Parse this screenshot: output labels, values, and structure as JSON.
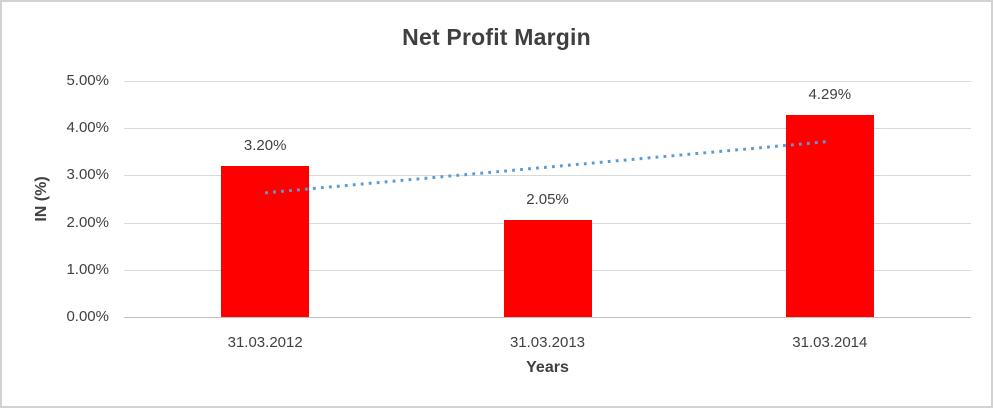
{
  "frame": {
    "background": "#ffffff",
    "border_color": "#d2d2d2"
  },
  "chart_data": {
    "type": "bar",
    "title": "Net Profit Margin",
    "categories": [
      "31.03.2012",
      "31.03.2013",
      "31.03.2014"
    ],
    "series": [
      {
        "name": "Net Profit Margin",
        "values": [
          3.2,
          2.05,
          4.29
        ]
      }
    ],
    "data_labels": [
      "3.20%",
      "2.05%",
      "4.29%"
    ],
    "xlabel": "Years",
    "ylabel": "IN (%)",
    "ylim": [
      0,
      5
    ],
    "ytick_labels": [
      "0.00%",
      "1.00%",
      "2.00%",
      "3.00%",
      "4.00%",
      "5.00%"
    ],
    "grid": true,
    "legend_position": "none",
    "bar_color": "#ff0000",
    "text_color": "#404040",
    "gridline_color": "#d9d9d9",
    "axisline_color": "#bfbfbf",
    "trendline": {
      "type": "linear",
      "style": "dotted",
      "color": "#5b9bd5",
      "start_value": 2.63,
      "end_value": 3.72
    }
  }
}
